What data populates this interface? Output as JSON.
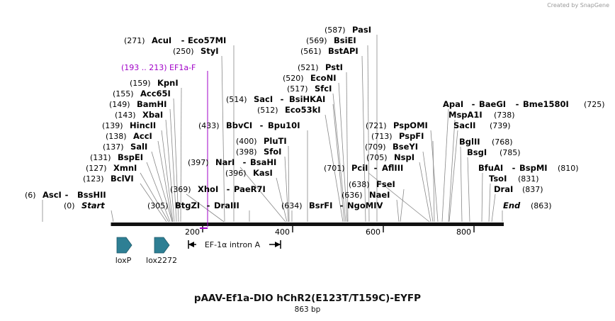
{
  "app": {
    "watermark": "Created by SnapGene"
  },
  "sequence": {
    "name": "pAAV-Ef1a-DIO hChR2(E123T/T159C)-EYFP",
    "length_label": "863 bp",
    "length": 863
  },
  "ticks": [
    "200",
    "400",
    "600",
    "800"
  ],
  "sites": [
    {
      "pos_label": "(6)",
      "name": "AscI",
      "name2": "BssHII"
    },
    {
      "pos_label": "(0)",
      "name": "Start"
    },
    {
      "pos_label": "(123)",
      "name": "BclVI"
    },
    {
      "pos_label": "(127)",
      "name": "XmnI"
    },
    {
      "pos_label": "(131)",
      "name": "BspEI"
    },
    {
      "pos_label": "(137)",
      "name": "SalI"
    },
    {
      "pos_label": "(138)",
      "name": "AccI"
    },
    {
      "pos_label": "(139)",
      "name": "HincII"
    },
    {
      "pos_label": "(143)",
      "name": "XbaI"
    },
    {
      "pos_label": "(149)",
      "name": "BamHI"
    },
    {
      "pos_label": "(155)",
      "name": "Acc65I"
    },
    {
      "pos_label": "(159)",
      "name": "KpnI"
    },
    {
      "pos_label": "(250)",
      "name": "StyI"
    },
    {
      "pos_label": "(271)",
      "name": "AcuI",
      "name2": "Eco57MI"
    },
    {
      "pos_label": "(305)",
      "name": "BtgZI",
      "name2": "DraIII"
    },
    {
      "pos_label": "(369)",
      "name": "XhoI",
      "name2": "PaeR7I"
    },
    {
      "pos_label": "(397)",
      "name": "NarI",
      "name2": "BsaHI"
    },
    {
      "pos_label": "(396)",
      "name": "KasI"
    },
    {
      "pos_label": "(398)",
      "name": "SfoI"
    },
    {
      "pos_label": "(400)",
      "name": "PluTI"
    },
    {
      "pos_label": "(433)",
      "name": "BbvCI",
      "name2": "Bpu10I"
    },
    {
      "pos_label": "(512)",
      "name": "Eco53kI"
    },
    {
      "pos_label": "(514)",
      "name": "SacI",
      "name2": "BsiHKAI"
    },
    {
      "pos_label": "(517)",
      "name": "SfcI"
    },
    {
      "pos_label": "(520)",
      "name": "EcoNI"
    },
    {
      "pos_label": "(521)",
      "name": "PstI"
    },
    {
      "pos_label": "(561)",
      "name": "BstAPI"
    },
    {
      "pos_label": "(569)",
      "name": "BsiEI"
    },
    {
      "pos_label": "(587)",
      "name": "PasI"
    },
    {
      "pos_label": "(634)",
      "name": "BsrFI",
      "name2": "NgoMIV"
    },
    {
      "pos_label": "(636)",
      "name": "NaeI"
    },
    {
      "pos_label": "(638)",
      "name": "FseI"
    },
    {
      "pos_label": "(701)",
      "name": "PciI",
      "name2": "AflIII"
    },
    {
      "pos_label": "(705)",
      "name": "NspI"
    },
    {
      "pos_label": "(709)",
      "name": "BseYI"
    },
    {
      "pos_label": "(713)",
      "name": "PspFI"
    },
    {
      "pos_label": "(721)",
      "name": "PspOMI"
    },
    {
      "pos_label": "(725)",
      "name": "ApaI",
      "name2": "BaeGI",
      "name3": "Bme1580I"
    },
    {
      "pos_label": "(738)",
      "name": "MspA1I"
    },
    {
      "pos_label": "(739)",
      "name": "SacII"
    },
    {
      "pos_label": "(768)",
      "name": "BglII"
    },
    {
      "pos_label": "(785)",
      "name": "BsgI"
    },
    {
      "pos_label": "(810)",
      "name": "BfuAI",
      "name2": "BspMI"
    },
    {
      "pos_label": "(831)",
      "name": "TsoI"
    },
    {
      "pos_label": "(837)",
      "name": "DraI"
    },
    {
      "pos_label": "(863)",
      "name": "End"
    }
  ],
  "primer": {
    "label": "(193 .. 213)  EF1a-F",
    "color": "#a000c8"
  },
  "features": [
    {
      "label": "loxP",
      "color": "#2e7f94"
    },
    {
      "label": "lox2272",
      "color": "#2e7f94"
    },
    {
      "label": "EF-1α intron A",
      "color": "#000000"
    }
  ]
}
